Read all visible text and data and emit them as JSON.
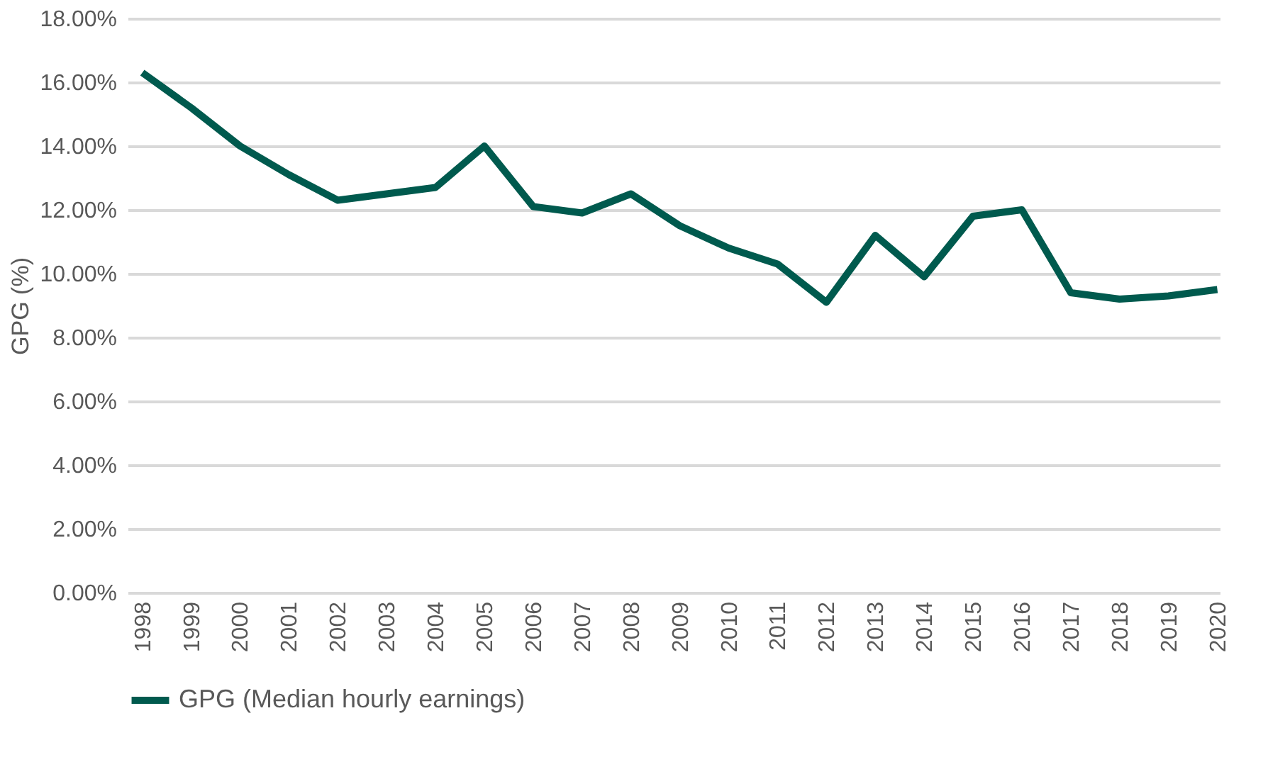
{
  "chart_data": {
    "type": "line",
    "ylabel": "GPG (%)",
    "categories": [
      "1998",
      "1999",
      "2000",
      "2001",
      "2002",
      "2003",
      "2004",
      "2005",
      "2006",
      "2007",
      "2008",
      "2009",
      "2010",
      "2011",
      "2012",
      "2013",
      "2014",
      "2015",
      "2016",
      "2017",
      "2018",
      "2019",
      "2020"
    ],
    "series": [
      {
        "name": "GPG (Median hourly earnings)",
        "color": "#005a4e",
        "values": [
          16.3,
          15.2,
          14.0,
          13.1,
          12.3,
          12.5,
          12.7,
          14.0,
          12.1,
          11.9,
          12.5,
          11.5,
          10.8,
          10.3,
          9.1,
          11.2,
          9.9,
          11.8,
          12.0,
          9.4,
          9.2,
          9.3,
          9.5
        ]
      }
    ],
    "ylim": [
      0,
      18
    ],
    "yticks": [
      {
        "value": 0,
        "label": "0.00%"
      },
      {
        "value": 2,
        "label": "2.00%"
      },
      {
        "value": 4,
        "label": "4.00%"
      },
      {
        "value": 6,
        "label": "6.00%"
      },
      {
        "value": 8,
        "label": "8.00%"
      },
      {
        "value": 10,
        "label": "10.00%"
      },
      {
        "value": 12,
        "label": "12.00%"
      },
      {
        "value": 14,
        "label": "14.00%"
      },
      {
        "value": 16,
        "label": "16.00%"
      },
      {
        "value": 18,
        "label": "18.00%"
      }
    ],
    "grid": "y",
    "legend": "bottom",
    "marker": "none",
    "line_style": "solid"
  }
}
